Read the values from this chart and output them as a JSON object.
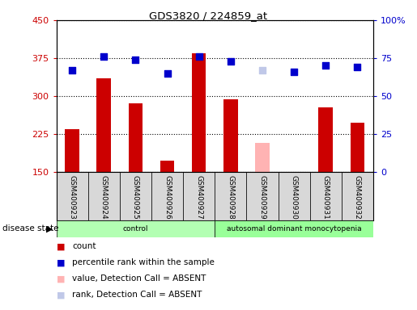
{
  "title": "GDS3820 / 224859_at",
  "samples": [
    "GSM400923",
    "GSM400924",
    "GSM400925",
    "GSM400926",
    "GSM400927",
    "GSM400928",
    "GSM400929",
    "GSM400930",
    "GSM400931",
    "GSM400932"
  ],
  "bar_values": [
    235,
    335,
    285,
    173,
    385,
    293,
    207,
    150,
    278,
    248
  ],
  "bar_colors": [
    "#cc0000",
    "#cc0000",
    "#cc0000",
    "#cc0000",
    "#cc0000",
    "#cc0000",
    "#ffb3b3",
    "#cc0000",
    "#cc0000",
    "#cc0000"
  ],
  "dot_values": [
    67,
    76,
    74,
    65,
    76,
    73,
    67,
    66,
    70,
    69
  ],
  "dot_colors": [
    "#0000cc",
    "#0000cc",
    "#0000cc",
    "#0000cc",
    "#0000cc",
    "#0000cc",
    "#c0c8e8",
    "#0000cc",
    "#0000cc",
    "#0000cc"
  ],
  "ylim_left": [
    150,
    450
  ],
  "ylim_right": [
    0,
    100
  ],
  "yticks_left": [
    150,
    225,
    300,
    375,
    450
  ],
  "yticks_right": [
    0,
    25,
    50,
    75,
    100
  ],
  "ytick_labels_right": [
    "0",
    "25",
    "50",
    "75",
    "100%"
  ],
  "groups": [
    {
      "label": "control",
      "start": 0,
      "end": 5
    },
    {
      "label": "autosomal dominant monocytopenia",
      "start": 5,
      "end": 10
    }
  ],
  "group_colors": [
    "#b3ffb3",
    "#99ff99"
  ],
  "disease_state_label": "disease state",
  "legend_items": [
    {
      "label": "count",
      "color": "#cc0000"
    },
    {
      "label": "percentile rank within the sample",
      "color": "#0000cc"
    },
    {
      "label": "value, Detection Call = ABSENT",
      "color": "#ffb3b3"
    },
    {
      "label": "rank, Detection Call = ABSENT",
      "color": "#c0c8e8"
    }
  ],
  "bar_width": 0.45,
  "dot_size": 35,
  "left_tick_color": "#cc0000",
  "right_tick_color": "#0000cc",
  "cell_color": "#d8d8d8"
}
